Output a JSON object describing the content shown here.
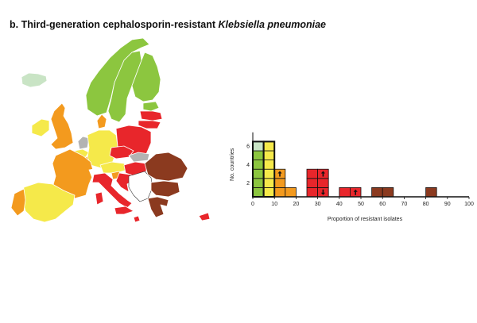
{
  "title": {
    "prefix": "b. Third-generation cephalosporin-resistant ",
    "organism": "Klebsiella pneumoniae"
  },
  "colors": {
    "light_green": "#c9e4c5",
    "green": "#8cc63f",
    "yellow": "#f5e94a",
    "orange": "#f39a1e",
    "red": "#e8262b",
    "dark_red": "#8b3a1f",
    "no_data": "#b3b3b3",
    "not_included": "#ffffff"
  },
  "map": {
    "regions": [
      {
        "name": "iceland",
        "cls": "light_green"
      },
      {
        "name": "norway",
        "cls": "green"
      },
      {
        "name": "sweden",
        "cls": "green"
      },
      {
        "name": "finland",
        "cls": "green"
      },
      {
        "name": "estonia",
        "cls": "green"
      },
      {
        "name": "latvia",
        "cls": "red"
      },
      {
        "name": "lithuania",
        "cls": "red"
      },
      {
        "name": "ireland",
        "cls": "yellow"
      },
      {
        "name": "united-kingdom",
        "cls": "orange"
      },
      {
        "name": "denmark",
        "cls": "orange"
      },
      {
        "name": "netherlands",
        "cls": "no_data"
      },
      {
        "name": "belgium",
        "cls": "yellow"
      },
      {
        "name": "luxembourg",
        "cls": "orange"
      },
      {
        "name": "germany",
        "cls": "yellow"
      },
      {
        "name": "poland",
        "cls": "red"
      },
      {
        "name": "czechia",
        "cls": "red"
      },
      {
        "name": "slovakia",
        "cls": "no_data"
      },
      {
        "name": "france",
        "cls": "orange"
      },
      {
        "name": "switzerland",
        "cls": "not_included"
      },
      {
        "name": "austria",
        "cls": "yellow"
      },
      {
        "name": "hungary",
        "cls": "red"
      },
      {
        "name": "slovenia",
        "cls": "orange"
      },
      {
        "name": "croatia",
        "cls": "red"
      },
      {
        "name": "western-balkans",
        "cls": "not_included"
      },
      {
        "name": "romania",
        "cls": "dark_red"
      },
      {
        "name": "bulgaria",
        "cls": "dark_red"
      },
      {
        "name": "greece",
        "cls": "dark_red"
      },
      {
        "name": "italy",
        "cls": "red"
      },
      {
        "name": "sardinia",
        "cls": "red"
      },
      {
        "name": "sicily",
        "cls": "red"
      },
      {
        "name": "spain",
        "cls": "yellow"
      },
      {
        "name": "portugal",
        "cls": "orange"
      },
      {
        "name": "malta",
        "cls": "red"
      },
      {
        "name": "cyprus",
        "cls": "red"
      }
    ]
  },
  "chart_data": {
    "type": "bar",
    "xlabel": "Proportion of resistant isolates",
    "ylabel": "No. countries",
    "xlim": [
      0,
      100
    ],
    "ylim": [
      0,
      7
    ],
    "x_ticks": [
      0,
      10,
      20,
      30,
      40,
      50,
      60,
      70,
      80,
      90,
      100
    ],
    "y_ticks": [
      2,
      4,
      6
    ],
    "bin_width": 5,
    "bins": [
      {
        "x0": 0,
        "cells": [
          "green",
          "green",
          "green",
          "green",
          "green",
          "light_green"
        ],
        "arrows": []
      },
      {
        "x0": 5,
        "cells": [
          "yellow",
          "yellow",
          "yellow",
          "yellow",
          "yellow",
          "yellow"
        ],
        "arrows": []
      },
      {
        "x0": 10,
        "cells": [
          "orange",
          "orange",
          "orange"
        ],
        "arrows": [
          "",
          "",
          "up"
        ]
      },
      {
        "x0": 15,
        "cells": [
          "orange"
        ],
        "arrows": [
          ""
        ]
      },
      {
        "x0": 25,
        "cells": [
          "red",
          "red",
          "red"
        ],
        "arrows": [
          "",
          "",
          ""
        ]
      },
      {
        "x0": 30,
        "cells": [
          "red",
          "red",
          "red"
        ],
        "arrows": [
          "down",
          "",
          "up"
        ]
      },
      {
        "x0": 40,
        "cells": [
          "red"
        ],
        "arrows": [
          ""
        ]
      },
      {
        "x0": 45,
        "cells": [
          "red"
        ],
        "arrows": [
          "up"
        ]
      },
      {
        "x0": 55,
        "cells": [
          "dark_red"
        ],
        "arrows": [
          ""
        ]
      },
      {
        "x0": 60,
        "cells": [
          "dark_red"
        ],
        "arrows": [
          ""
        ]
      },
      {
        "x0": 80,
        "cells": [
          "dark_red"
        ],
        "arrows": [
          ""
        ]
      }
    ],
    "bold_outline_bins": [
      0,
      5
    ]
  }
}
